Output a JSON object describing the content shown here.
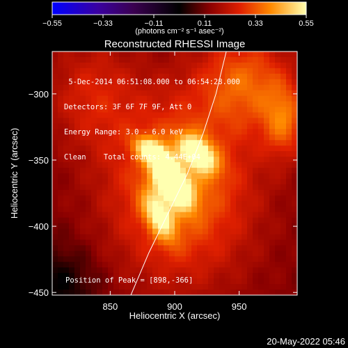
{
  "chart_data": {
    "type": "heatmap",
    "title": "Reconstructed RHESSI Image",
    "xlabel": "Heliocentric X (arcsec)",
    "ylabel": "Heliocentric Y (arcsec)",
    "xlim": [
      805,
      995
    ],
    "ylim": [
      -452,
      -268
    ],
    "xticks": [
      850,
      900,
      950
    ],
    "yticks": [
      -300,
      -350,
      -400,
      -450
    ],
    "peak": [
      898,
      -366
    ],
    "colorbar": {
      "range": [
        -0.55,
        0.55
      ],
      "ticks": [
        "-0.55",
        "-0.33",
        "-0.11",
        "0.11",
        "0.33",
        "0.55"
      ],
      "label": "(photons cm⁻² s⁻¹ asec⁻²)"
    },
    "annotations": [
      " 5-Dec-2014 06:51:08.000 to 06:54:28.000",
      "Detectors: 3F 6F 7F 9F, Att 0",
      "Energy Range: 3.0 - 6.0 keV",
      "Clean    Total counts: 4.44E+04"
    ],
    "peak_label": "Position of Peak = [898,-366]",
    "limb_curve": [
      [
        866,
        -452
      ],
      [
        880,
        -420
      ],
      [
        895,
        -390
      ],
      [
        910,
        -360
      ],
      [
        922,
        -330
      ],
      [
        932,
        -300
      ],
      [
        940,
        -268
      ]
    ],
    "sources": [
      {
        "x": 898,
        "y": -366,
        "amp": 0.55,
        "sx": 7,
        "sy": 14,
        "rot": 35
      },
      {
        "x": 918,
        "y": -345,
        "amp": 0.38,
        "sx": 7,
        "sy": 12,
        "rot": 45
      },
      {
        "x": 882,
        "y": -343,
        "amp": 0.3,
        "sx": 10,
        "sy": 6,
        "rot": -30
      },
      {
        "x": 888,
        "y": -392,
        "amp": 0.28,
        "sx": 7,
        "sy": 14,
        "rot": 25
      },
      {
        "x": 905,
        "y": -370,
        "amp": 0.25,
        "sx": 40,
        "sy": 50,
        "rot": 0
      },
      {
        "x": 955,
        "y": -290,
        "amp": 0.2,
        "sx": 25,
        "sy": 25,
        "rot": 0
      },
      {
        "x": 985,
        "y": -320,
        "amp": 0.2,
        "sx": 12,
        "sy": 20,
        "rot": 0
      },
      {
        "x": 835,
        "y": -300,
        "amp": 0.12,
        "sx": 25,
        "sy": 30,
        "rot": 0
      }
    ],
    "background_level": 0.12
  },
  "footer_date": "20-May-2022 05:46"
}
